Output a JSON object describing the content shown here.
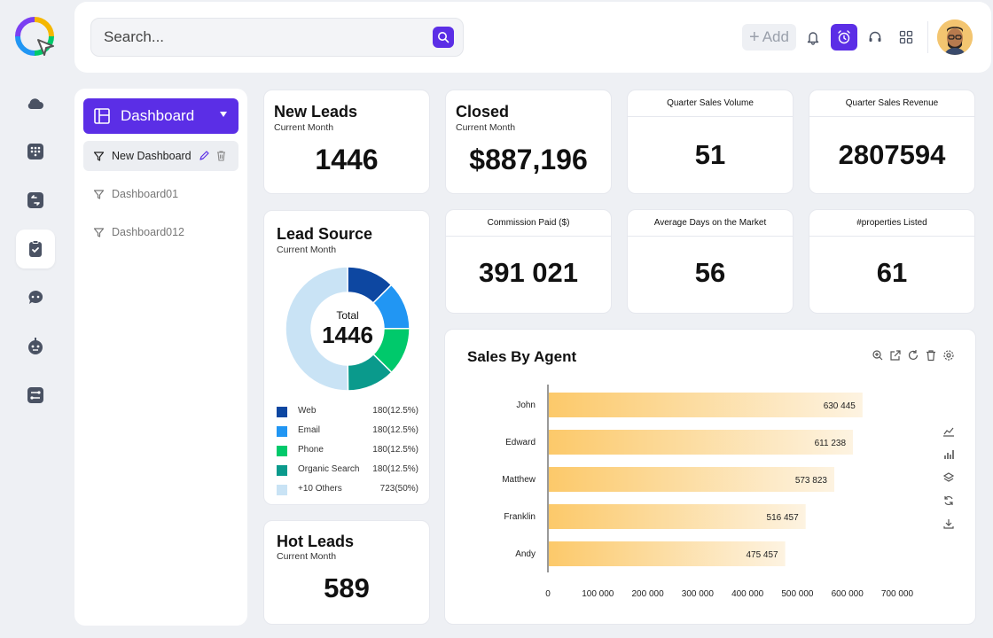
{
  "header": {
    "search_placeholder": "Search...",
    "add_label": "Add",
    "accent_color": "#5b2ee6"
  },
  "rail": {
    "icons": [
      "cloud-icon",
      "dialpad-icon",
      "switch-icon",
      "clipboard-check-icon",
      "chat-bot-icon",
      "robot-icon",
      "workflow-icon"
    ],
    "active_index": 3
  },
  "side_panel": {
    "dashboard_label": "Dashboard",
    "items": [
      {
        "label": "New Dashboard",
        "selected": true
      },
      {
        "label": "Dashboard01",
        "selected": false
      },
      {
        "label": "Dashboard012",
        "selected": false
      }
    ]
  },
  "cards": {
    "new_leads": {
      "title": "New Leads",
      "subtitle": "Current Month",
      "value": "1446"
    },
    "closed": {
      "title": "Closed",
      "subtitle": "Current Month",
      "value": "$887,196"
    },
    "quarter_sales_volume": {
      "title": "Quarter Sales Volume",
      "value": "51"
    },
    "quarter_sales_revenue": {
      "title": "Quarter Sales Revenue",
      "value": "2807594"
    },
    "commission_paid": {
      "title": "Commission Paid ($)",
      "value": "391 021"
    },
    "avg_days": {
      "title": "Average Days on the Market",
      "value": "56"
    },
    "properties_listed": {
      "title": "#properties Listed",
      "value": "61"
    },
    "hot_leads": {
      "title": "Hot Leads",
      "subtitle": "Current Month",
      "value": "589"
    }
  },
  "lead_source": {
    "title": "Lead Source",
    "subtitle": "Current Month",
    "center_label": "Total",
    "center_value": "1446",
    "legend": [
      {
        "name": "Web",
        "value": "180(12.5%)",
        "color": "#0d47a1"
      },
      {
        "name": "Email",
        "value": "180(12.5%)",
        "color": "#2196f3"
      },
      {
        "name": "Phone",
        "value": "180(12.5%)",
        "color": "#00c96b"
      },
      {
        "name": "Organic Search",
        "value": "180(12.5%)",
        "color": "#0a9a8c"
      },
      {
        "name": "+10 Others",
        "value": "723(50%)",
        "color": "#c9e3f5"
      }
    ]
  },
  "chart_data": {
    "type": "bar",
    "orientation": "horizontal",
    "title": "Sales By Agent",
    "categories": [
      "John",
      "Edward",
      "Matthew",
      "Franklin",
      "Andy"
    ],
    "values": [
      630445,
      611238,
      573823,
      516457,
      475457
    ],
    "value_labels": [
      "630 445",
      "611 238",
      "573 823",
      "516 457",
      "475 457"
    ],
    "xlim": [
      0,
      700000
    ],
    "x_ticks": [
      "0",
      "100 000",
      "200 000",
      "300 000",
      "400 000",
      "500 000",
      "600 000",
      "700 000"
    ],
    "bar_color": "#fcc96a",
    "grid": false,
    "toolbar_icons": [
      "zoom-in-icon",
      "open-external-icon",
      "refresh-icon",
      "delete-icon",
      "settings-icon"
    ],
    "side_icons": [
      "line-chart-icon",
      "bar-chart-icon",
      "layers-icon",
      "rotate-icon",
      "download-icon"
    ]
  }
}
